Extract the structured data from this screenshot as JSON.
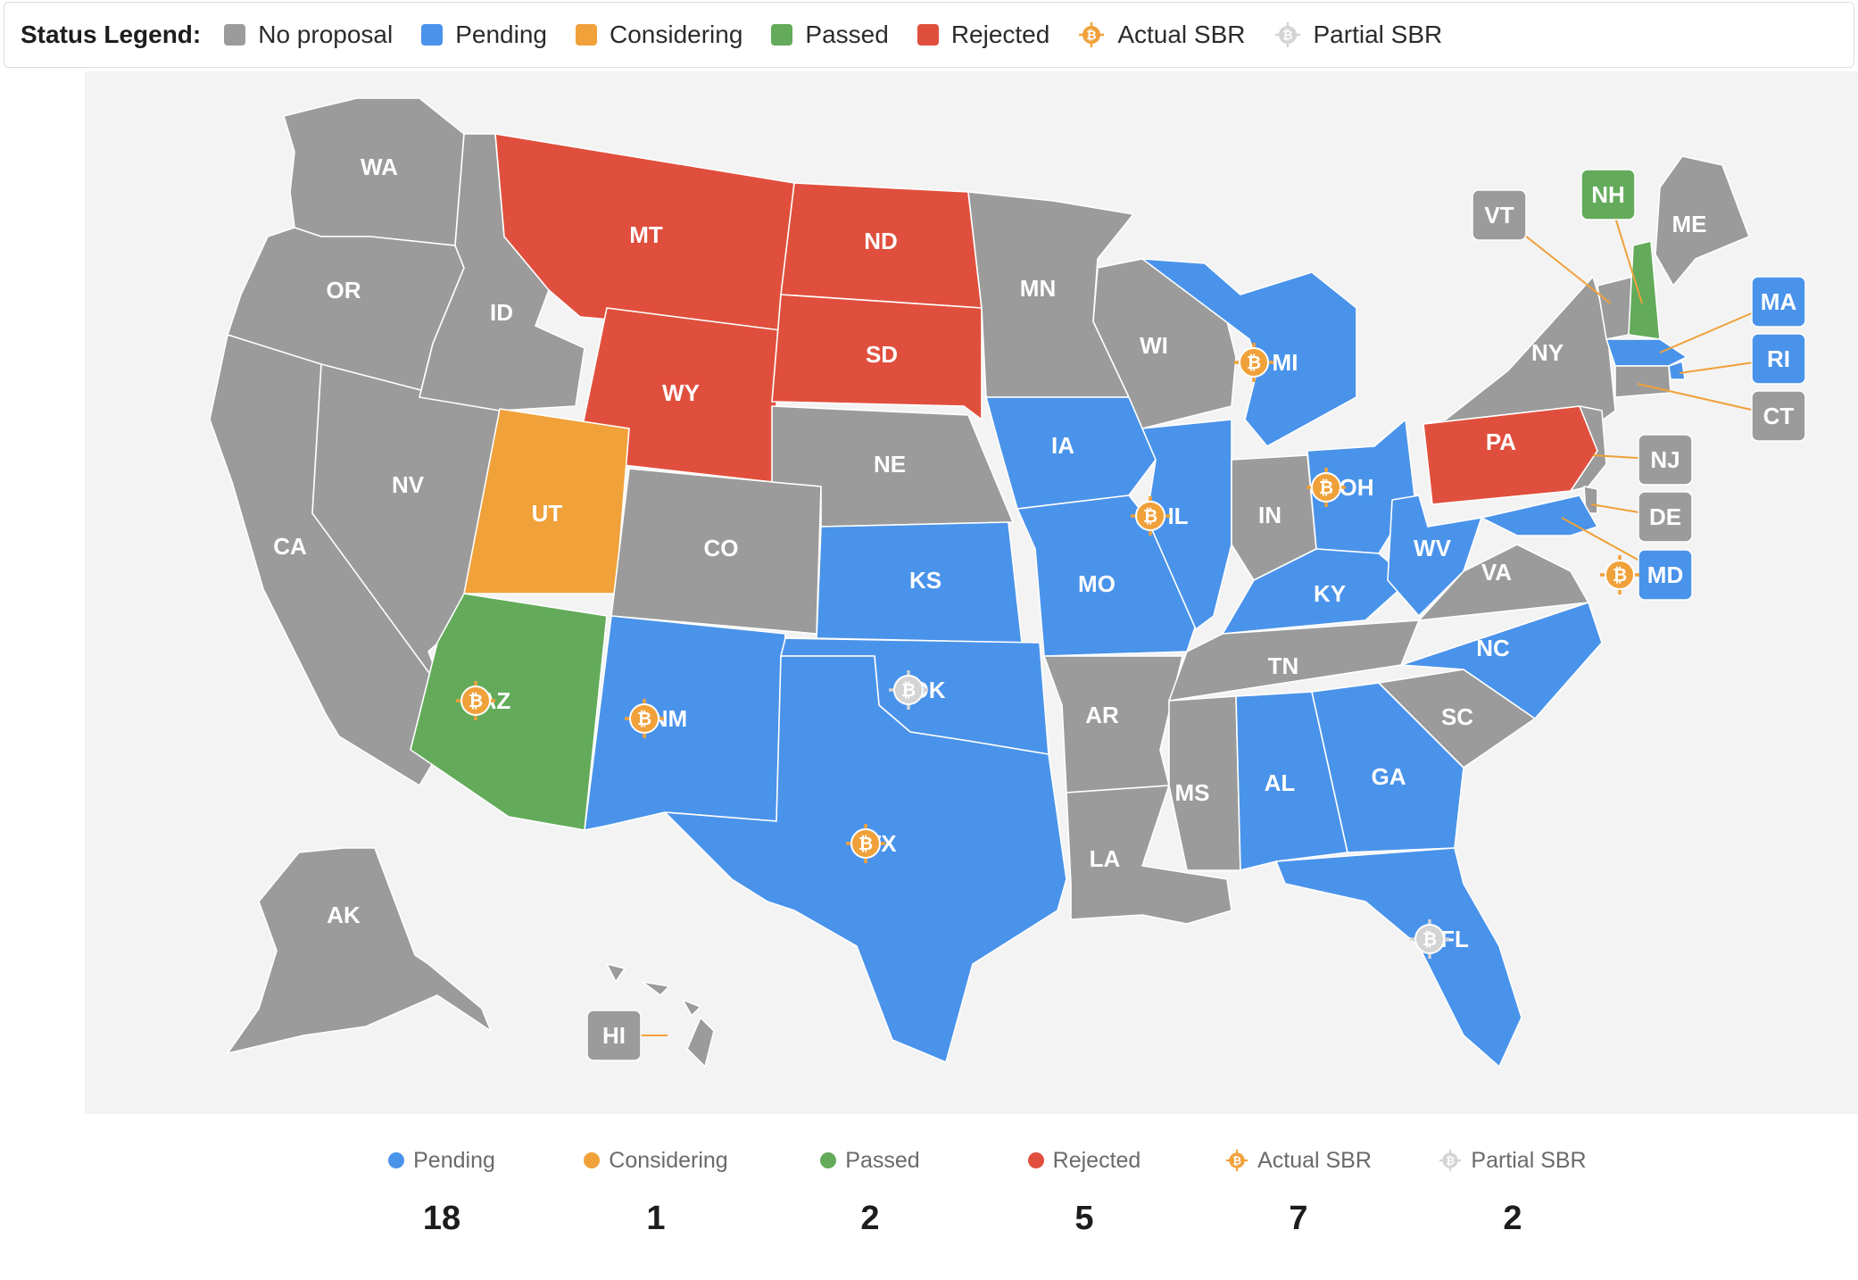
{
  "legend": {
    "title": "Status Legend:",
    "items": [
      {
        "label": "No proposal",
        "color": "#9b9b9b",
        "kind": "swatch"
      },
      {
        "label": "Pending",
        "color": "#4a93ea",
        "kind": "swatch"
      },
      {
        "label": "Considering",
        "color": "#f0a13a",
        "kind": "swatch"
      },
      {
        "label": "Passed",
        "color": "#63ab5a",
        "kind": "swatch"
      },
      {
        "label": "Rejected",
        "color": "#e04f3d",
        "kind": "swatch"
      },
      {
        "label": "Actual SBR",
        "color": "#f0a13a",
        "kind": "bitcoin-icon"
      },
      {
        "label": "Partial SBR",
        "color": "#d9d9d9",
        "kind": "bitcoin-icon"
      }
    ]
  },
  "colors": {
    "no_proposal": "#9b9b9b",
    "pending": "#4a93ea",
    "considering": "#f0a13a",
    "passed": "#63ab5a",
    "rejected": "#e04f3d",
    "actual_sbr": "#f0a13a",
    "partial_sbr": "#d4d4d4",
    "map_background": "#f3f3f3"
  },
  "states": [
    {
      "abbr": "WA",
      "status": "no_proposal",
      "sbr": ""
    },
    {
      "abbr": "OR",
      "status": "no_proposal",
      "sbr": ""
    },
    {
      "abbr": "CA",
      "status": "no_proposal",
      "sbr": ""
    },
    {
      "abbr": "NV",
      "status": "no_proposal",
      "sbr": ""
    },
    {
      "abbr": "ID",
      "status": "no_proposal",
      "sbr": ""
    },
    {
      "abbr": "MT",
      "status": "rejected",
      "sbr": ""
    },
    {
      "abbr": "WY",
      "status": "rejected",
      "sbr": ""
    },
    {
      "abbr": "UT",
      "status": "considering",
      "sbr": ""
    },
    {
      "abbr": "AZ",
      "status": "passed",
      "sbr": "actual"
    },
    {
      "abbr": "CO",
      "status": "no_proposal",
      "sbr": ""
    },
    {
      "abbr": "NM",
      "status": "pending",
      "sbr": "actual"
    },
    {
      "abbr": "ND",
      "status": "rejected",
      "sbr": ""
    },
    {
      "abbr": "SD",
      "status": "rejected",
      "sbr": ""
    },
    {
      "abbr": "NE",
      "status": "no_proposal",
      "sbr": ""
    },
    {
      "abbr": "KS",
      "status": "pending",
      "sbr": ""
    },
    {
      "abbr": "OK",
      "status": "pending",
      "sbr": "partial"
    },
    {
      "abbr": "TX",
      "status": "pending",
      "sbr": "actual"
    },
    {
      "abbr": "MN",
      "status": "no_proposal",
      "sbr": ""
    },
    {
      "abbr": "IA",
      "status": "pending",
      "sbr": ""
    },
    {
      "abbr": "MO",
      "status": "pending",
      "sbr": ""
    },
    {
      "abbr": "AR",
      "status": "no_proposal",
      "sbr": ""
    },
    {
      "abbr": "LA",
      "status": "no_proposal",
      "sbr": ""
    },
    {
      "abbr": "WI",
      "status": "no_proposal",
      "sbr": ""
    },
    {
      "abbr": "IL",
      "status": "pending",
      "sbr": "actual"
    },
    {
      "abbr": "MI",
      "status": "pending",
      "sbr": "actual"
    },
    {
      "abbr": "IN",
      "status": "no_proposal",
      "sbr": ""
    },
    {
      "abbr": "OH",
      "status": "pending",
      "sbr": "actual"
    },
    {
      "abbr": "KY",
      "status": "pending",
      "sbr": ""
    },
    {
      "abbr": "TN",
      "status": "no_proposal",
      "sbr": ""
    },
    {
      "abbr": "MS",
      "status": "no_proposal",
      "sbr": ""
    },
    {
      "abbr": "AL",
      "status": "pending",
      "sbr": ""
    },
    {
      "abbr": "GA",
      "status": "pending",
      "sbr": ""
    },
    {
      "abbr": "FL",
      "status": "pending",
      "sbr": "partial"
    },
    {
      "abbr": "SC",
      "status": "no_proposal",
      "sbr": ""
    },
    {
      "abbr": "NC",
      "status": "pending",
      "sbr": ""
    },
    {
      "abbr": "VA",
      "status": "no_proposal",
      "sbr": ""
    },
    {
      "abbr": "WV",
      "status": "pending",
      "sbr": ""
    },
    {
      "abbr": "PA",
      "status": "rejected",
      "sbr": ""
    },
    {
      "abbr": "NY",
      "status": "no_proposal",
      "sbr": ""
    },
    {
      "abbr": "ME",
      "status": "no_proposal",
      "sbr": ""
    },
    {
      "abbr": "AK",
      "status": "no_proposal",
      "sbr": ""
    },
    {
      "abbr": "VT",
      "status": "no_proposal",
      "sbr": ""
    },
    {
      "abbr": "NH",
      "status": "passed",
      "sbr": ""
    },
    {
      "abbr": "MA",
      "status": "pending",
      "sbr": ""
    },
    {
      "abbr": "RI",
      "status": "pending",
      "sbr": ""
    },
    {
      "abbr": "CT",
      "status": "no_proposal",
      "sbr": ""
    },
    {
      "abbr": "NJ",
      "status": "no_proposal",
      "sbr": ""
    },
    {
      "abbr": "DE",
      "status": "no_proposal",
      "sbr": ""
    },
    {
      "abbr": "MD",
      "status": "pending",
      "sbr": "actual"
    },
    {
      "abbr": "HI",
      "status": "no_proposal",
      "sbr": ""
    }
  ],
  "summary": [
    {
      "label": "Pending",
      "value": "18",
      "color": "#4a93ea",
      "kind": "dot"
    },
    {
      "label": "Considering",
      "value": "1",
      "color": "#f0a13a",
      "kind": "dot"
    },
    {
      "label": "Passed",
      "value": "2",
      "color": "#63ab5a",
      "kind": "dot"
    },
    {
      "label": "Rejected",
      "value": "5",
      "color": "#e04f3d",
      "kind": "dot"
    },
    {
      "label": "Actual SBR",
      "value": "7",
      "color": "#f0a13a",
      "kind": "bitcoin-icon"
    },
    {
      "label": "Partial SBR",
      "value": "2",
      "color": "#d4d4d4",
      "kind": "bitcoin-icon"
    }
  ]
}
